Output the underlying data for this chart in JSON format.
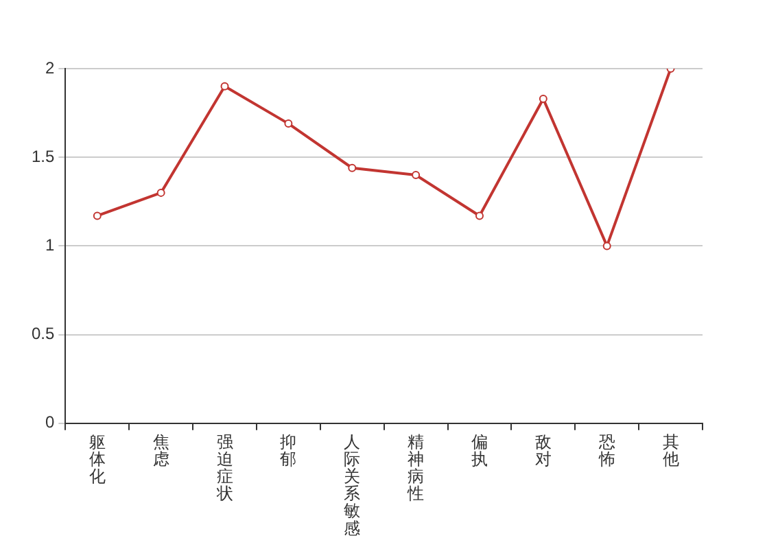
{
  "chart_data": {
    "type": "line",
    "categories": [
      "躯体化",
      "焦虑",
      "强迫症状",
      "抑郁",
      "人际关系敏感",
      "精神病性",
      "偏执",
      "敌对",
      "恐怖",
      "其他"
    ],
    "series": [
      {
        "color": "#c23531",
        "values": [
          1.17,
          1.3,
          1.9,
          1.69,
          1.44,
          1.4,
          1.17,
          1.83,
          1.0,
          2.0
        ]
      }
    ],
    "ylim": [
      0,
      2
    ],
    "yticks": [
      0,
      0.5,
      1,
      1.5,
      2
    ],
    "grid": "y",
    "legend": false,
    "marker": "circle",
    "line_style": "solid"
  }
}
